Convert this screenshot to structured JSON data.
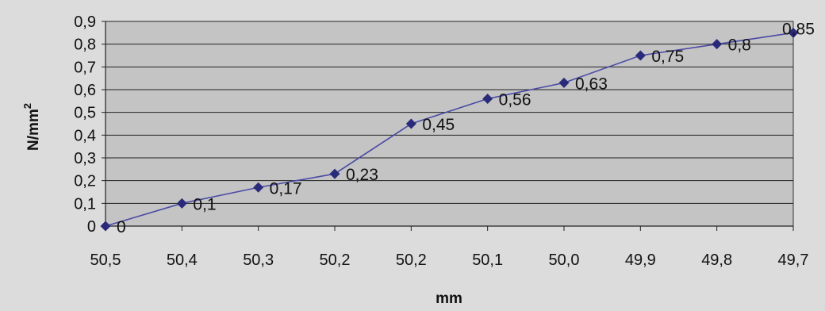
{
  "chart_data": {
    "type": "line",
    "xlabel": "mm",
    "ylabel": "N/mm",
    "ylabel_superscript": "2",
    "categories": [
      "50,5",
      "50,4",
      "50,3",
      "50,2",
      "50,2",
      "50,1",
      "50,0",
      "49,9",
      "49,8",
      "49,7"
    ],
    "values": [
      0,
      0.1,
      0.17,
      0.23,
      0.45,
      0.56,
      0.63,
      0.75,
      0.8,
      0.85
    ],
    "data_labels": [
      "0",
      "0,1",
      "0,17",
      "0,23",
      "0,45",
      "0,56",
      "0,63",
      "0,75",
      "0,8",
      "0,85"
    ],
    "y_ticks": [
      0,
      0.1,
      0.2,
      0.3,
      0.4,
      0.5,
      0.6,
      0.7,
      0.8,
      0.9
    ],
    "y_tick_labels": [
      "0",
      "0,1",
      "0,2",
      "0,3",
      "0,4",
      "0,5",
      "0,6",
      "0,7",
      "0,8",
      "0,9"
    ],
    "ylim": [
      0,
      0.9
    ],
    "grid": true,
    "legend": "none",
    "colors": {
      "page_background": "#dcdcdc",
      "plot_background": "#c4c4c4",
      "line": "#4b4ba6",
      "marker": "#2a2a7a",
      "gridline": "#222222"
    }
  }
}
